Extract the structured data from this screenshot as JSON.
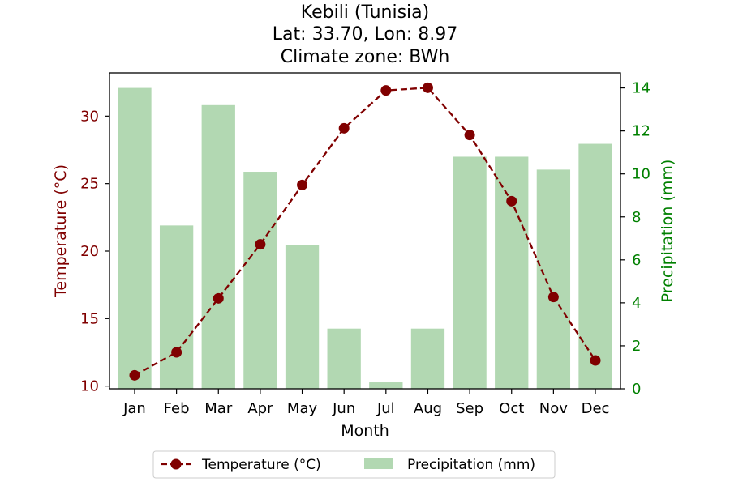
{
  "chart_data": {
    "type": "bar+line",
    "title_lines": [
      "Kebili (Tunisia)",
      "Lat: 33.70, Lon: 8.97",
      "Climate zone: BWh"
    ],
    "xlabel": "Month",
    "categories": [
      "Jan",
      "Feb",
      "Mar",
      "Apr",
      "May",
      "Jun",
      "Jul",
      "Aug",
      "Sep",
      "Oct",
      "Nov",
      "Dec"
    ],
    "temperature": {
      "name": "Temperature (°C)",
      "axis_label": "Temperature (°C)",
      "values": [
        10.8,
        12.5,
        16.5,
        20.5,
        24.9,
        29.1,
        31.9,
        32.1,
        28.6,
        23.7,
        16.6,
        11.9
      ],
      "ylim": [
        9.8,
        33.2
      ],
      "ticks": [
        10,
        15,
        20,
        25,
        30
      ],
      "color": "#800000",
      "marker": "circle",
      "linestyle": "dashed"
    },
    "precipitation": {
      "name": "Precipitation (mm)",
      "axis_label": "Precipitation (mm)",
      "values": [
        14.0,
        7.6,
        13.2,
        10.1,
        6.7,
        2.8,
        0.3,
        2.8,
        10.8,
        10.8,
        10.2,
        11.4
      ],
      "ylim": [
        0,
        14.7
      ],
      "ticks": [
        0,
        2,
        4,
        6,
        8,
        10,
        12,
        14
      ],
      "color": "#008000",
      "bar_color": "#b2d8b2"
    },
    "legend": {
      "placement": "bottom-center"
    },
    "grid": false
  }
}
